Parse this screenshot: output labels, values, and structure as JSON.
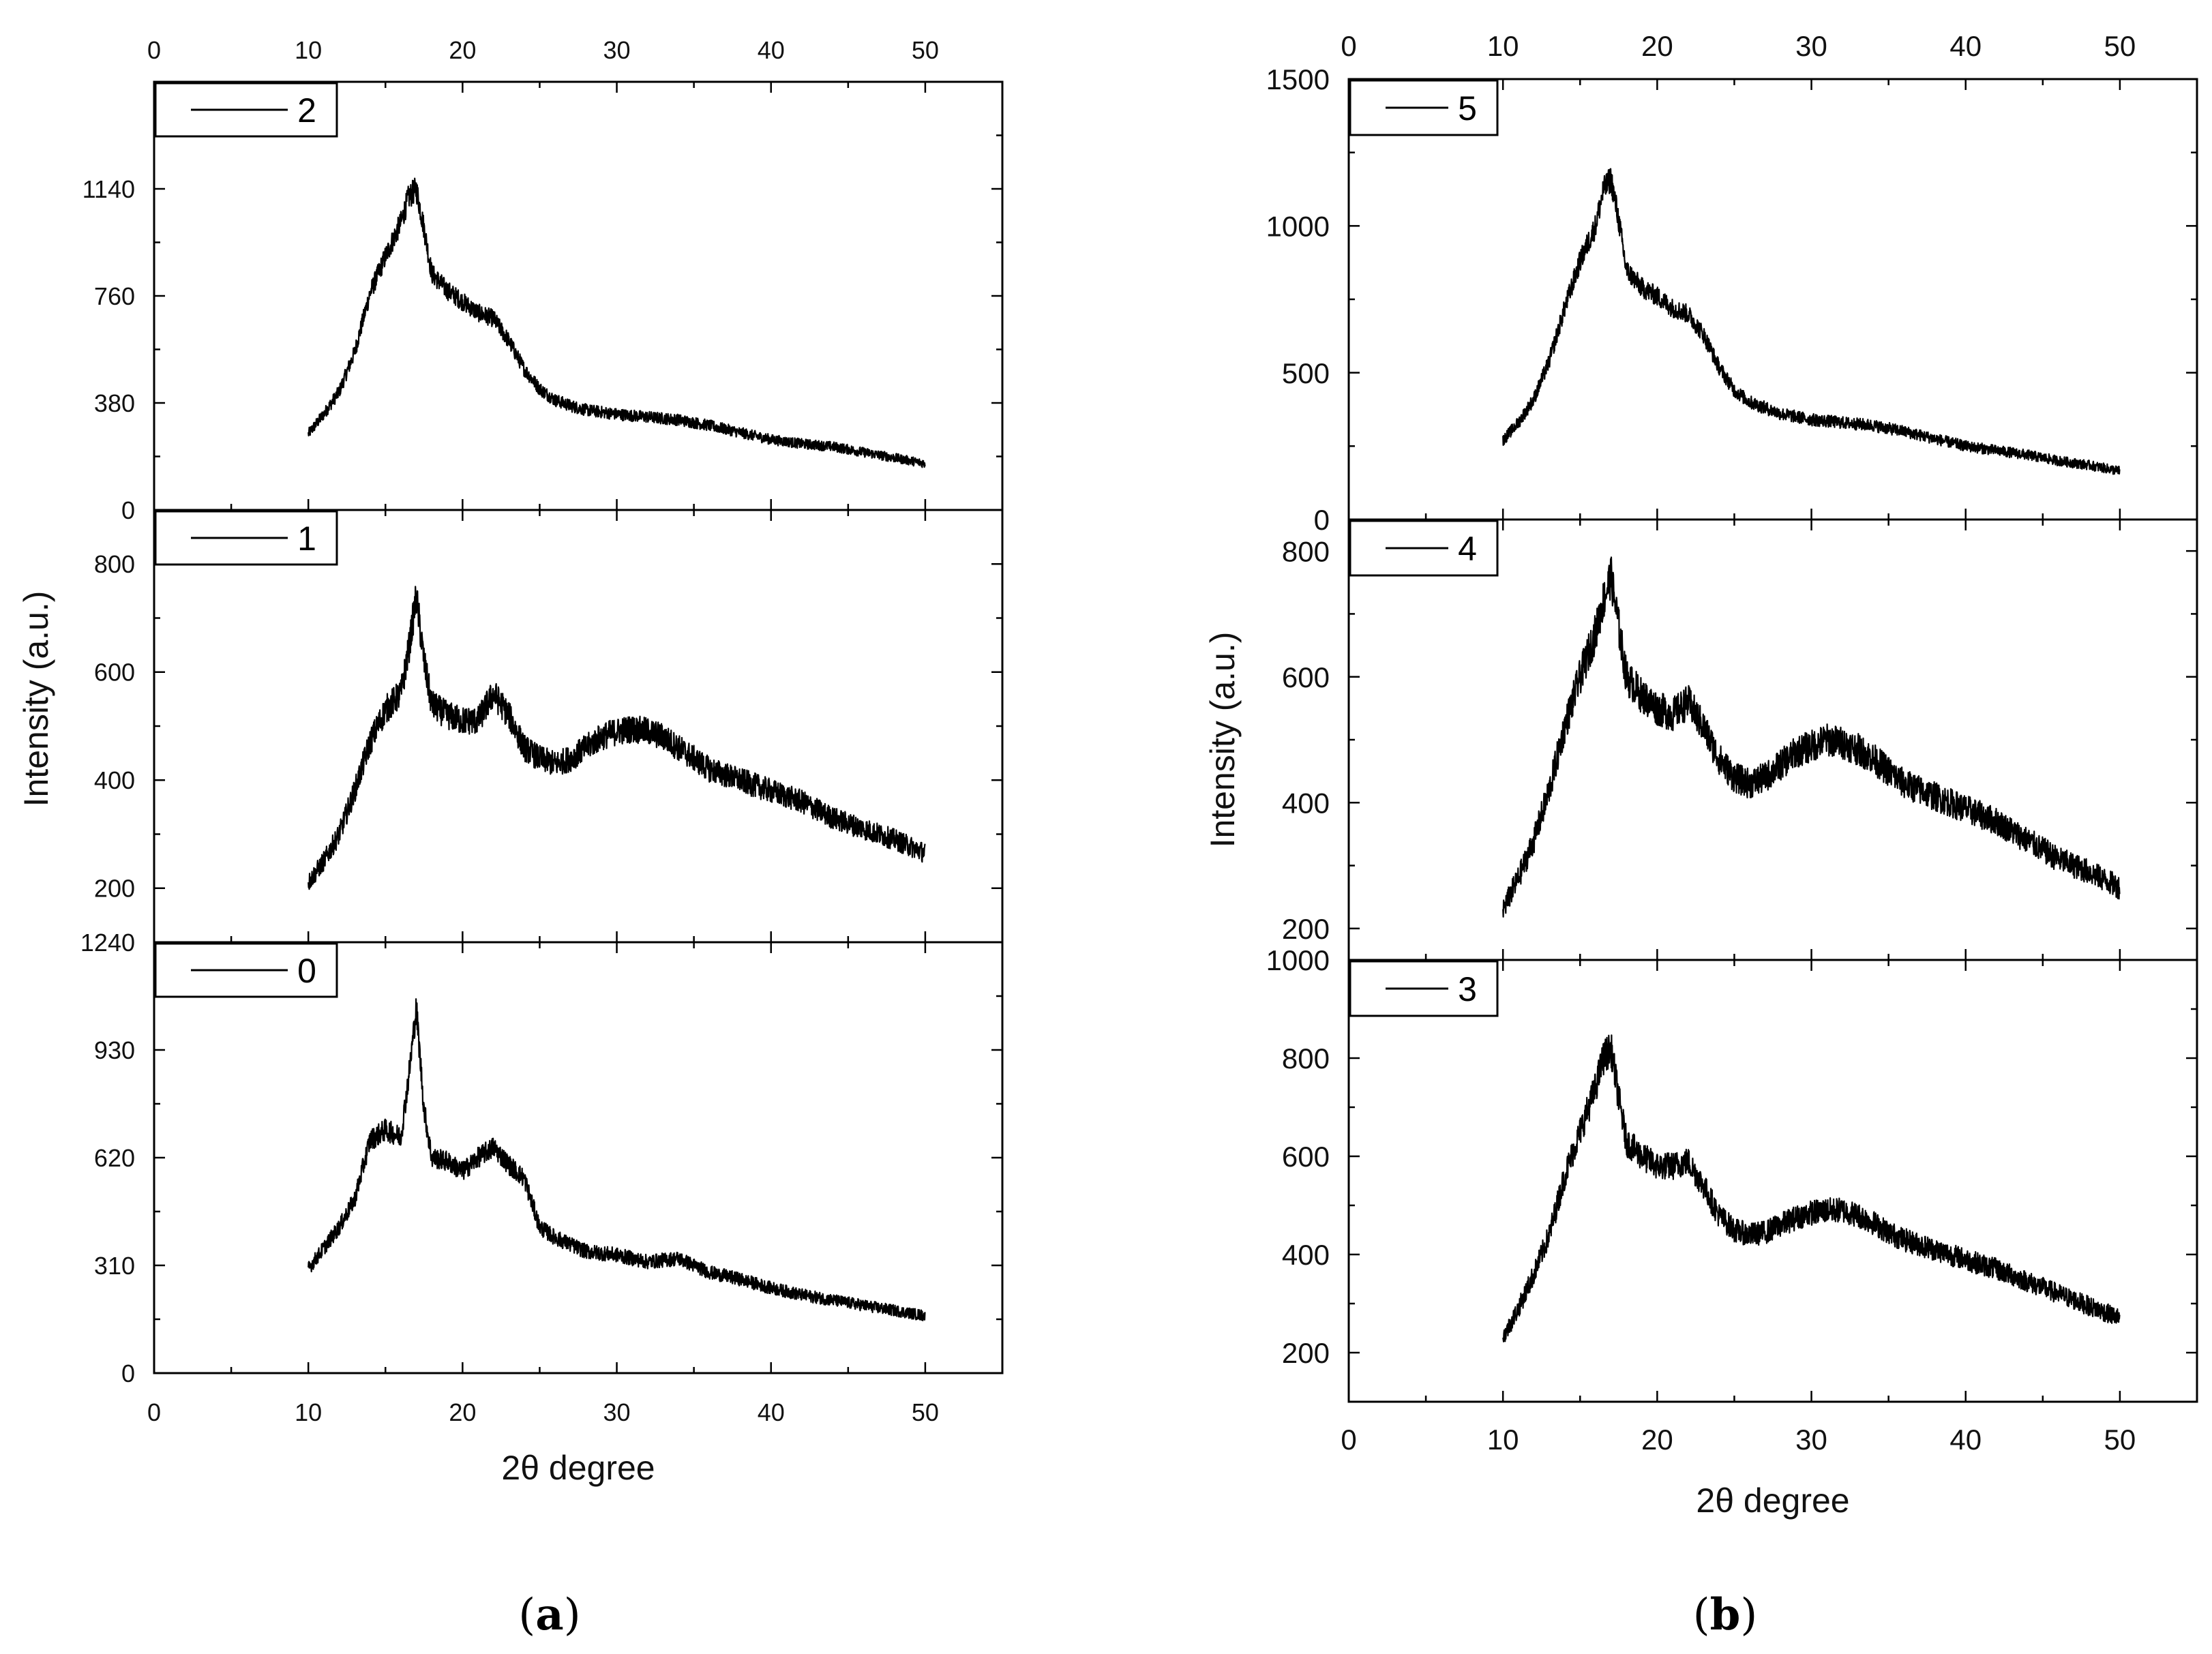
{
  "chart_data": [
    {
      "type": "line",
      "panel_label": "(a)",
      "caption_letter": "a",
      "xlabel": "2θ degree",
      "ylabel": "Intensity (a.u.)",
      "xlim": [
        0,
        55
      ],
      "xticks": [
        0,
        10,
        20,
        30,
        40,
        50
      ],
      "grid": false,
      "subplots": [
        {
          "legend": "2",
          "ylim": [
            0,
            1520
          ],
          "yticks": [
            0,
            380,
            760,
            1140
          ],
          "series": [
            {
              "name": "2",
              "x": [
                10,
                11,
                12,
                13,
                14,
                15,
                16,
                16.5,
                17,
                17.5,
                18,
                19,
                20,
                21,
                22,
                23,
                24,
                25,
                26,
                27,
                28,
                30,
                32,
                34,
                36,
                38,
                40,
                42,
                44,
                46,
                48,
                50
              ],
              "y": [
                270,
                340,
                420,
                560,
                770,
                900,
                1020,
                1110,
                1140,
                1000,
                840,
                780,
                740,
                700,
                680,
                600,
                500,
                430,
                390,
                370,
                355,
                340,
                330,
                320,
                300,
                275,
                250,
                235,
                225,
                205,
                185,
                165
              ]
            }
          ]
        },
        {
          "legend": "1",
          "ylim": [
            100,
            900
          ],
          "yticks": [
            200,
            400,
            600,
            800
          ],
          "series": [
            {
              "name": "1",
              "x": [
                10,
                11,
                12,
                13,
                14,
                15,
                16,
                16.5,
                17,
                17.5,
                18,
                19,
                20,
                21,
                22,
                23,
                24,
                25,
                26,
                27,
                28,
                29,
                30,
                31,
                32,
                33,
                34,
                35,
                36,
                38,
                40,
                42,
                44,
                46,
                48,
                50
              ],
              "y": [
                210,
                250,
                300,
                380,
                470,
                530,
                560,
                640,
                740,
                620,
                540,
                520,
                510,
                510,
                560,
                520,
                460,
                440,
                430,
                440,
                460,
                480,
                490,
                495,
                490,
                480,
                460,
                440,
                420,
                400,
                380,
                360,
                330,
                310,
                290,
                265
              ]
            }
          ]
        },
        {
          "legend": "0",
          "ylim": [
            0,
            1240
          ],
          "yticks": [
            0,
            310,
            620,
            930,
            1240
          ],
          "series": [
            {
              "name": "0",
              "x": [
                10,
                11,
                12,
                13,
                14,
                15,
                16,
                16.5,
                17,
                17.5,
                18,
                19,
                20,
                21,
                22,
                23,
                24,
                25,
                26,
                28,
                30,
                32,
                34,
                35,
                36,
                38,
                40,
                42,
                44,
                46,
                48,
                50
              ],
              "y": [
                300,
                360,
                420,
                500,
                670,
                700,
                680,
                850,
                1050,
                760,
                620,
                610,
                580,
                620,
                650,
                600,
                560,
                420,
                390,
                350,
                340,
                320,
                330,
                310,
                290,
                270,
                245,
                225,
                210,
                195,
                180,
                165
              ]
            }
          ]
        }
      ]
    },
    {
      "type": "line",
      "panel_label": "(b)",
      "caption_letter": "b",
      "xlabel": "2θ degree",
      "ylabel": "Intensity (a.u.)",
      "xlim": [
        0,
        55
      ],
      "xticks": [
        0,
        10,
        20,
        30,
        40,
        50
      ],
      "grid": false,
      "subplots": [
        {
          "legend": "5",
          "ylim": [
            0,
            1500
          ],
          "yticks": [
            0,
            500,
            1000,
            1500
          ],
          "series": [
            {
              "name": "5",
              "x": [
                10,
                11,
                12,
                13,
                14,
                15,
                16,
                16.5,
                17,
                17.5,
                18,
                19,
                20,
                21,
                22,
                23,
                24,
                25,
                26,
                27,
                28,
                30,
                32,
                34,
                36,
                38,
                40,
                42,
                44,
                46,
                48,
                50
              ],
              "y": [
                270,
                330,
                410,
                540,
                720,
                880,
                1000,
                1120,
                1160,
                1020,
                850,
                790,
                760,
                720,
                700,
                630,
                520,
                440,
                400,
                380,
                360,
                340,
                330,
                320,
                300,
                275,
                250,
                235,
                220,
                200,
                185,
                165
              ]
            }
          ]
        },
        {
          "legend": "4",
          "ylim": [
            150,
            850
          ],
          "yticks": [
            200,
            400,
            600,
            800
          ],
          "series": [
            {
              "name": "4",
              "x": [
                10,
                11,
                12,
                13,
                14,
                15,
                16,
                16.5,
                17,
                17.5,
                18,
                19,
                20,
                21,
                22,
                23,
                24,
                25,
                26,
                27,
                28,
                29,
                30,
                31,
                32,
                33,
                34,
                35,
                36,
                38,
                40,
                42,
                44,
                46,
                48,
                50
              ],
              "y": [
                230,
                280,
                340,
                420,
                520,
                600,
                670,
                720,
                760,
                680,
                600,
                570,
                550,
                540,
                560,
                520,
                470,
                440,
                430,
                440,
                460,
                480,
                490,
                500,
                495,
                485,
                470,
                450,
                430,
                410,
                390,
                370,
                340,
                310,
                290,
                265
              ]
            }
          ]
        },
        {
          "legend": "3",
          "ylim": [
            100,
            1000
          ],
          "yticks": [
            200,
            400,
            600,
            800,
            1000
          ],
          "series": [
            {
              "name": "3",
              "x": [
                10,
                11,
                12,
                13,
                14,
                15,
                16,
                16.5,
                17,
                17.5,
                18,
                19,
                20,
                21,
                22,
                23,
                24,
                25,
                26,
                27,
                28,
                29,
                30,
                31,
                32,
                33,
                34,
                35,
                36,
                38,
                40,
                42,
                44,
                46,
                48,
                50
              ],
              "y": [
                230,
                290,
                360,
                440,
                560,
                650,
                740,
                800,
                820,
                720,
                630,
                600,
                580,
                580,
                590,
                540,
                480,
                450,
                440,
                445,
                460,
                475,
                485,
                490,
                490,
                480,
                465,
                445,
                430,
                410,
                390,
                370,
                345,
                320,
                295,
                270
              ]
            }
          ]
        }
      ]
    }
  ]
}
